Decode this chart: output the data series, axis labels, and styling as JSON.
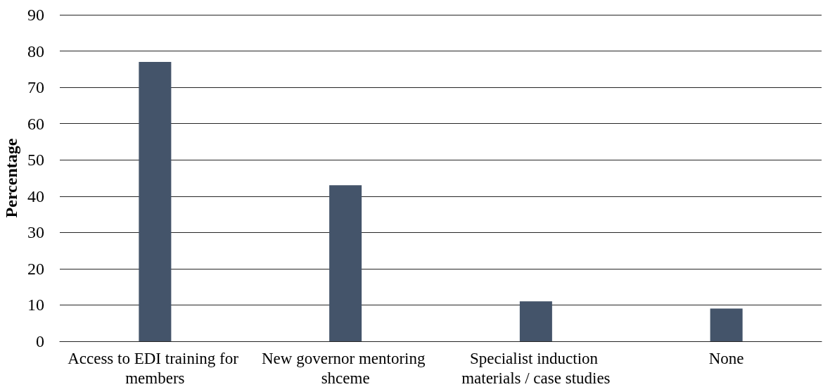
{
  "chart_data": {
    "type": "bar",
    "ylabel": "Percentage",
    "categories": [
      "Access to EDI training for members",
      "New governor mentoring shceme",
      "Specialist induction materials / case studies",
      "None"
    ],
    "values": [
      77,
      43,
      11,
      9
    ],
    "color": "#44546a",
    "ylim": [
      0,
      90
    ],
    "yticks": [
      0,
      10,
      20,
      30,
      40,
      50,
      60,
      70,
      80,
      90
    ],
    "grid": "y"
  }
}
